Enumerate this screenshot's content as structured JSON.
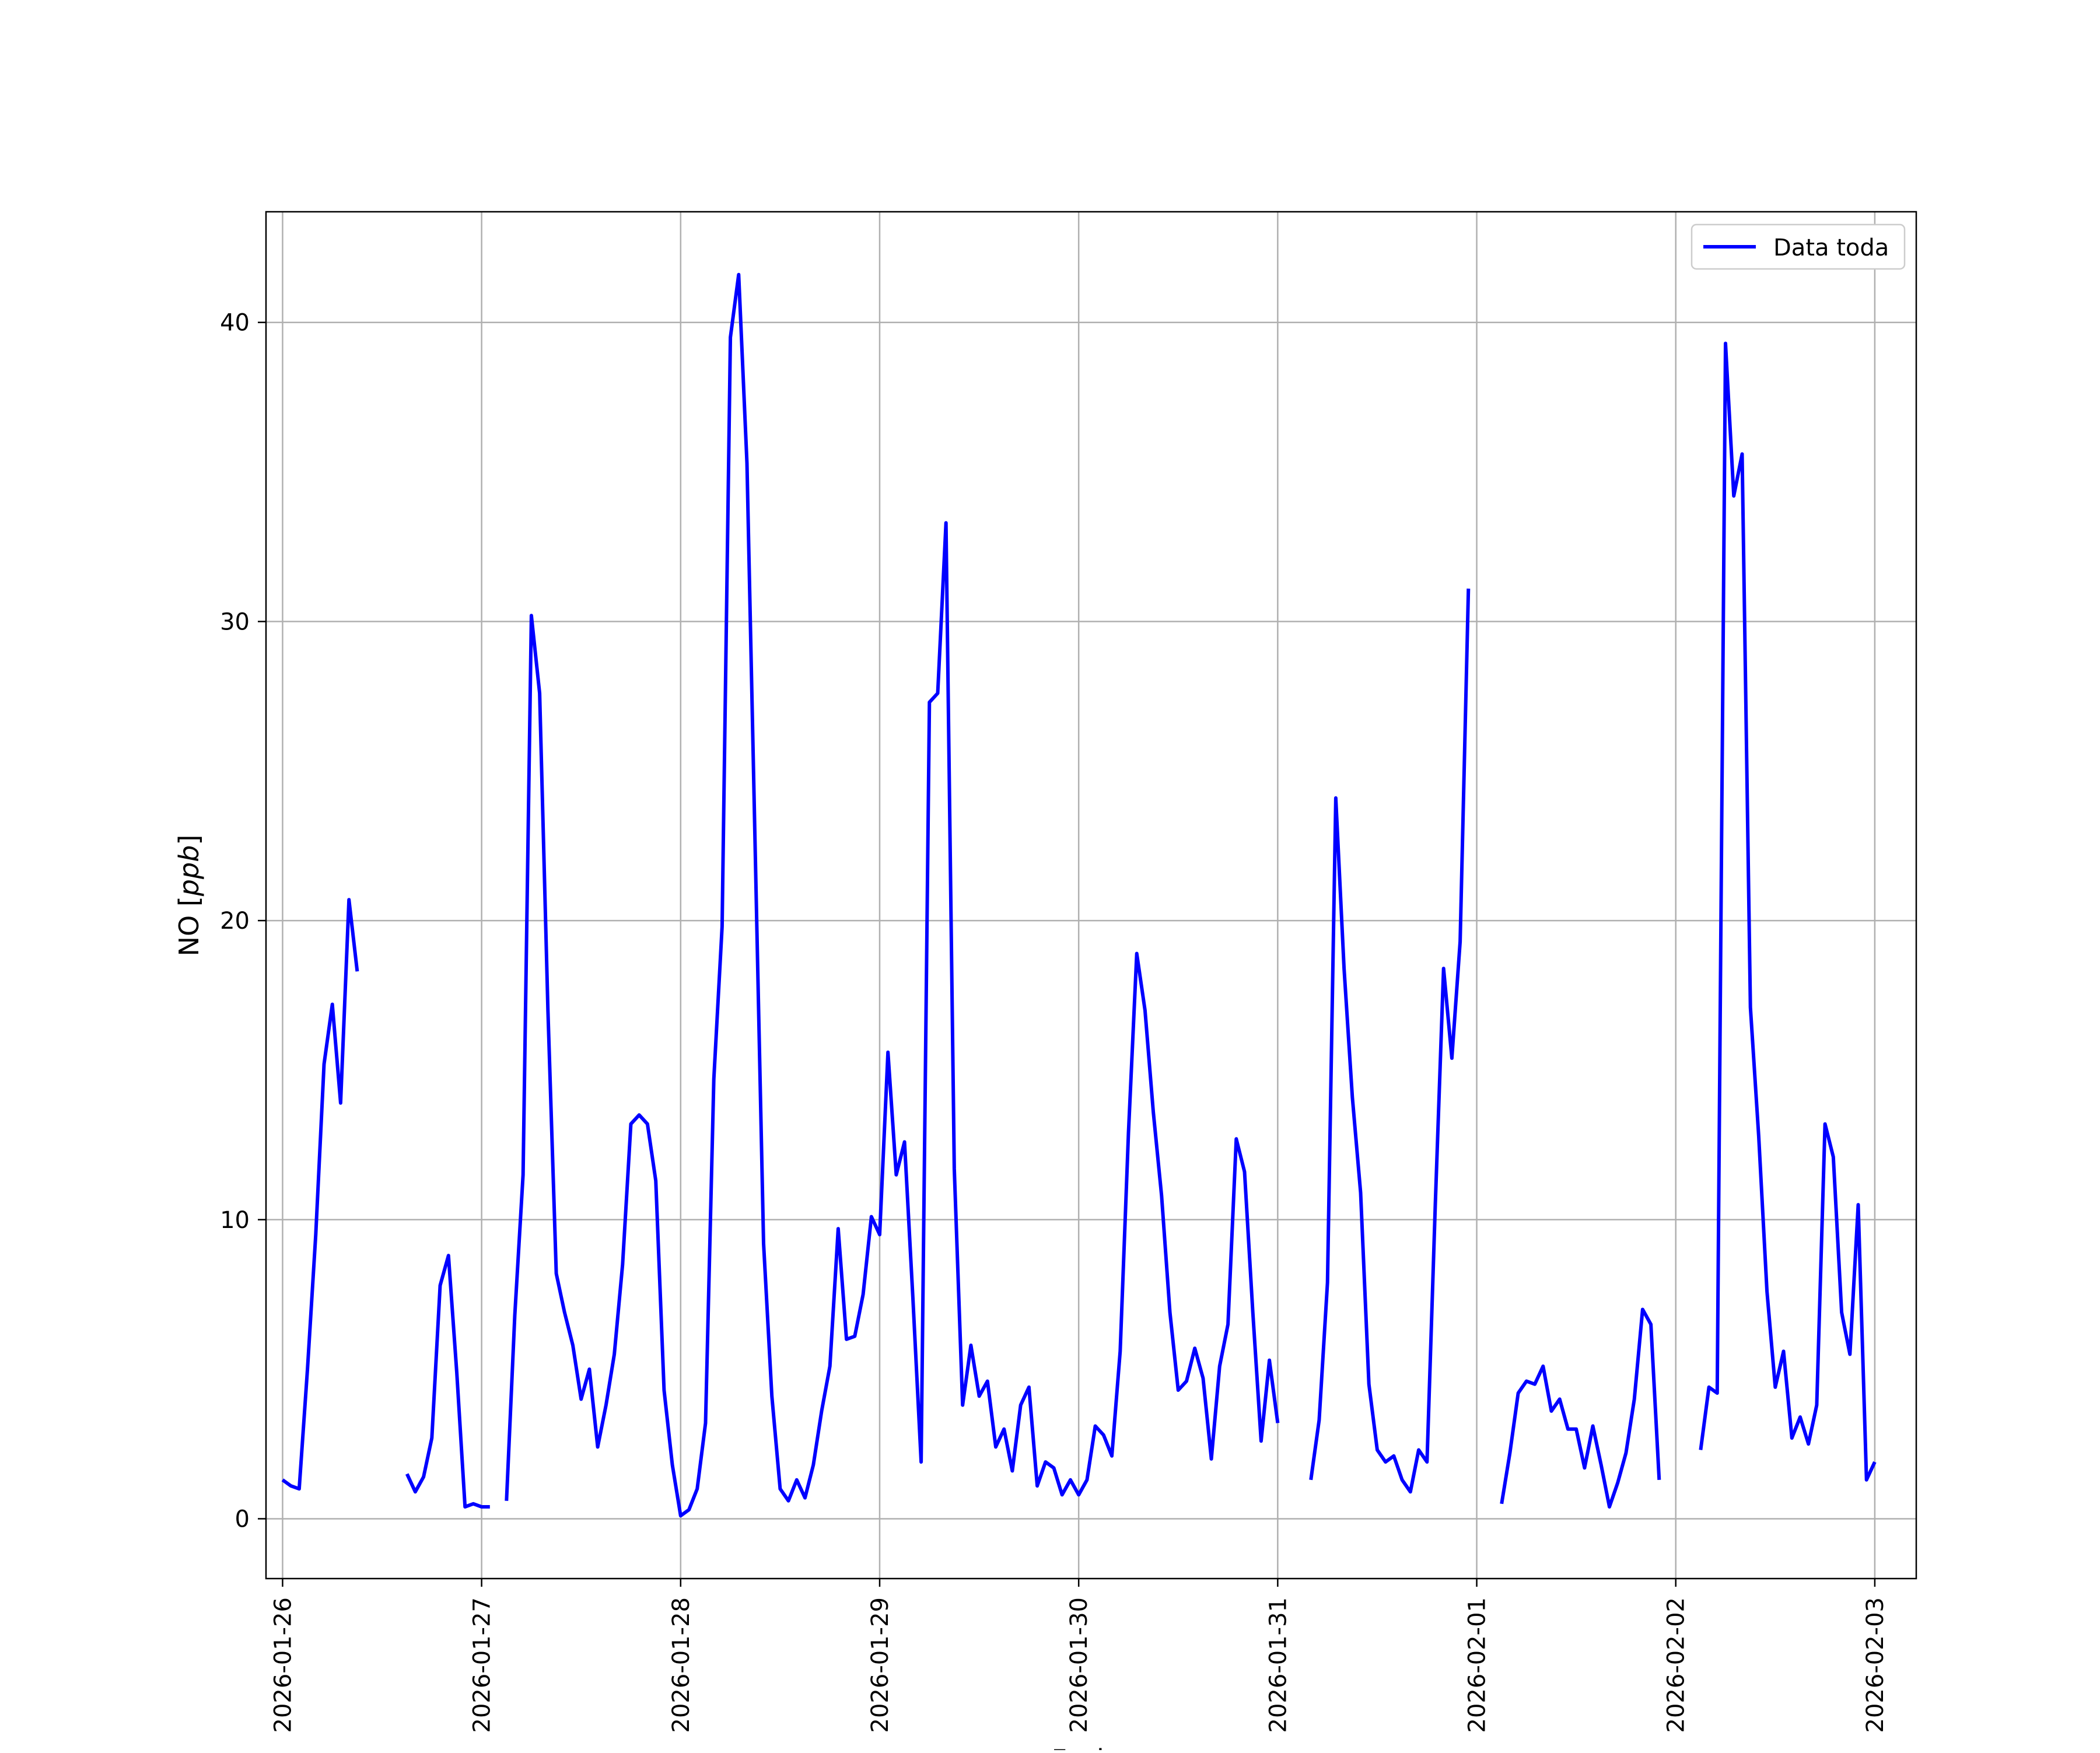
{
  "chart_data": {
    "type": "line",
    "title": "",
    "xlabel": "Fecha",
    "ylabel": "NO [ppb]",
    "ylabel_unit": "ppb",
    "x_start": "2026-01-25T22:00",
    "x_end": "2026-02-03T05:00",
    "xticks": [
      "2026-01-26",
      "2026-01-27",
      "2026-01-28",
      "2026-01-29",
      "2026-01-30",
      "2026-01-31",
      "2026-02-01",
      "2026-02-02",
      "2026-02-03"
    ],
    "yticks": [
      0,
      10,
      20,
      30,
      40
    ],
    "ylim": [
      -2,
      43.7
    ],
    "grid": true,
    "legend_position": "top-right",
    "series": [
      {
        "name": "Data toda",
        "color": "#0000ff",
        "points": [
          [
            "2026-01-26T00:00",
            1.3
          ],
          [
            "2026-01-26T01:00",
            1.1
          ],
          [
            "2026-01-26T02:00",
            1.0
          ],
          [
            "2026-01-26T03:00",
            5.0
          ],
          [
            "2026-01-26T04:00",
            9.5
          ],
          [
            "2026-01-26T05:00",
            15.2
          ],
          [
            "2026-01-26T06:00",
            17.2
          ],
          [
            "2026-01-26T07:00",
            13.9
          ],
          [
            "2026-01-26T08:00",
            20.7
          ],
          [
            "2026-01-26T09:00",
            18.3
          ],
          null,
          [
            "2026-01-26T15:00",
            1.5
          ],
          [
            "2026-01-26T16:00",
            0.9
          ],
          [
            "2026-01-26T17:00",
            1.4
          ],
          [
            "2026-01-26T18:00",
            2.7
          ],
          [
            "2026-01-26T19:00",
            7.8
          ],
          [
            "2026-01-26T20:00",
            8.8
          ],
          [
            "2026-01-26T21:00",
            4.9
          ],
          [
            "2026-01-26T22:00",
            0.4
          ],
          [
            "2026-01-26T23:00",
            0.5
          ],
          [
            "2026-01-27T00:00",
            0.4
          ],
          [
            "2026-01-27T01:00",
            0.4
          ],
          null,
          [
            "2026-01-27T03:00",
            0.6
          ],
          [
            "2026-01-27T04:00",
            6.8
          ],
          [
            "2026-01-27T05:00",
            11.5
          ],
          [
            "2026-01-27T06:00",
            30.2
          ],
          [
            "2026-01-27T07:00",
            27.6
          ],
          [
            "2026-01-27T08:00",
            17.0
          ],
          [
            "2026-01-27T09:00",
            8.2
          ],
          [
            "2026-01-27T10:00",
            6.9
          ],
          [
            "2026-01-27T11:00",
            5.8
          ],
          [
            "2026-01-27T12:00",
            4.0
          ],
          [
            "2026-01-27T13:00",
            5.0
          ],
          [
            "2026-01-27T14:00",
            2.4
          ],
          [
            "2026-01-27T15:00",
            3.8
          ],
          [
            "2026-01-27T16:00",
            5.5
          ],
          [
            "2026-01-27T17:00",
            8.5
          ],
          [
            "2026-01-27T18:00",
            13.2
          ],
          [
            "2026-01-27T19:00",
            13.5
          ],
          [
            "2026-01-27T20:00",
            13.2
          ],
          [
            "2026-01-27T21:00",
            11.3
          ],
          [
            "2026-01-27T22:00",
            4.3
          ],
          [
            "2026-01-27T23:00",
            1.8
          ],
          [
            "2026-01-28T00:00",
            0.1
          ],
          [
            "2026-01-28T01:00",
            0.3
          ],
          [
            "2026-01-28T02:00",
            1.0
          ],
          [
            "2026-01-28T03:00",
            3.2
          ],
          [
            "2026-01-28T04:00",
            14.7
          ],
          [
            "2026-01-28T05:00",
            19.8
          ],
          [
            "2026-01-28T06:00",
            39.5
          ],
          [
            "2026-01-28T07:00",
            41.6
          ],
          [
            "2026-01-28T08:00",
            35.3
          ],
          [
            "2026-01-28T09:00",
            22.3
          ],
          [
            "2026-01-28T10:00",
            9.2
          ],
          [
            "2026-01-28T11:00",
            4.1
          ],
          [
            "2026-01-28T12:00",
            1.0
          ],
          [
            "2026-01-28T13:00",
            0.6
          ],
          [
            "2026-01-28T14:00",
            1.3
          ],
          [
            "2026-01-28T15:00",
            0.7
          ],
          [
            "2026-01-28T16:00",
            1.8
          ],
          [
            "2026-01-28T17:00",
            3.6
          ],
          [
            "2026-01-28T18:00",
            5.1
          ],
          [
            "2026-01-28T19:00",
            9.7
          ],
          [
            "2026-01-28T20:00",
            6.0
          ],
          [
            "2026-01-28T21:00",
            6.1
          ],
          [
            "2026-01-28T22:00",
            7.5
          ],
          [
            "2026-01-28T23:00",
            10.1
          ],
          [
            "2026-01-29T00:00",
            9.5
          ],
          [
            "2026-01-29T01:00",
            15.6
          ],
          [
            "2026-01-29T02:00",
            11.5
          ],
          [
            "2026-01-29T03:00",
            12.6
          ],
          [
            "2026-01-29T04:00",
            7.4
          ],
          [
            "2026-01-29T05:00",
            1.9
          ],
          [
            "2026-01-29T06:00",
            27.3
          ],
          [
            "2026-01-29T07:00",
            27.6
          ],
          [
            "2026-01-29T08:00",
            33.3
          ],
          [
            "2026-01-29T09:00",
            11.7
          ],
          [
            "2026-01-29T10:00",
            3.8
          ],
          [
            "2026-01-29T11:00",
            5.8
          ],
          [
            "2026-01-29T12:00",
            4.1
          ],
          [
            "2026-01-29T13:00",
            4.6
          ],
          [
            "2026-01-29T14:00",
            2.4
          ],
          [
            "2026-01-29T15:00",
            3.0
          ],
          [
            "2026-01-29T16:00",
            1.6
          ],
          [
            "2026-01-29T17:00",
            3.8
          ],
          [
            "2026-01-29T18:00",
            4.4
          ],
          [
            "2026-01-29T19:00",
            1.1
          ],
          [
            "2026-01-29T20:00",
            1.9
          ],
          [
            "2026-01-29T21:00",
            1.7
          ],
          [
            "2026-01-29T22:00",
            0.8
          ],
          [
            "2026-01-29T23:00",
            1.3
          ],
          [
            "2026-01-30T00:00",
            0.8
          ],
          [
            "2026-01-30T01:00",
            1.3
          ],
          [
            "2026-01-30T02:00",
            3.1
          ],
          [
            "2026-01-30T03:00",
            2.8
          ],
          [
            "2026-01-30T04:00",
            2.1
          ],
          [
            "2026-01-30T05:00",
            5.6
          ],
          [
            "2026-01-30T06:00",
            12.9
          ],
          [
            "2026-01-30T07:00",
            18.9
          ],
          [
            "2026-01-30T08:00",
            17.0
          ],
          [
            "2026-01-30T09:00",
            13.6
          ],
          [
            "2026-01-30T10:00",
            10.8
          ],
          [
            "2026-01-30T11:00",
            6.9
          ],
          [
            "2026-01-30T12:00",
            4.3
          ],
          [
            "2026-01-30T13:00",
            4.6
          ],
          [
            "2026-01-30T14:00",
            5.7
          ],
          [
            "2026-01-30T15:00",
            4.7
          ],
          [
            "2026-01-30T16:00",
            2.0
          ],
          [
            "2026-01-30T17:00",
            5.1
          ],
          [
            "2026-01-30T18:00",
            6.5
          ],
          [
            "2026-01-30T19:00",
            12.7
          ],
          [
            "2026-01-30T20:00",
            11.6
          ],
          [
            "2026-01-30T21:00",
            6.9
          ],
          [
            "2026-01-30T22:00",
            2.6
          ],
          [
            "2026-01-30T23:00",
            5.3
          ],
          [
            "2026-01-31T00:00",
            3.2
          ],
          null,
          [
            "2026-01-31T04:00",
            1.3
          ],
          [
            "2026-01-31T05:00",
            3.3
          ],
          [
            "2026-01-31T06:00",
            7.9
          ],
          [
            "2026-01-31T07:00",
            24.1
          ],
          [
            "2026-01-31T08:00",
            18.4
          ],
          [
            "2026-01-31T09:00",
            14.1
          ],
          [
            "2026-01-31T10:00",
            10.9
          ],
          [
            "2026-01-31T11:00",
            4.5
          ],
          [
            "2026-01-31T12:00",
            2.3
          ],
          [
            "2026-01-31T13:00",
            1.9
          ],
          [
            "2026-01-31T14:00",
            2.1
          ],
          [
            "2026-01-31T15:00",
            1.3
          ],
          [
            "2026-01-31T16:00",
            0.9
          ],
          [
            "2026-01-31T17:00",
            2.3
          ],
          [
            "2026-01-31T18:00",
            1.9
          ],
          [
            "2026-01-31T19:00",
            10.5
          ],
          [
            "2026-01-31T20:00",
            18.4
          ],
          [
            "2026-01-31T21:00",
            15.4
          ],
          [
            "2026-01-31T22:00",
            19.3
          ],
          [
            "2026-01-31T23:00",
            31.1
          ],
          null,
          [
            "2026-02-01T03:00",
            0.5
          ],
          [
            "2026-02-01T04:00",
            2.2
          ],
          [
            "2026-02-01T05:00",
            4.2
          ],
          [
            "2026-02-01T06:00",
            4.6
          ],
          [
            "2026-02-01T07:00",
            4.5
          ],
          [
            "2026-02-01T08:00",
            5.1
          ],
          [
            "2026-02-01T09:00",
            3.6
          ],
          [
            "2026-02-01T10:00",
            4.0
          ],
          [
            "2026-02-01T11:00",
            3.0
          ],
          [
            "2026-02-01T12:00",
            3.0
          ],
          [
            "2026-02-01T13:00",
            1.7
          ],
          [
            "2026-02-01T14:00",
            3.1
          ],
          [
            "2026-02-01T15:00",
            1.8
          ],
          [
            "2026-02-01T16:00",
            0.4
          ],
          [
            "2026-02-01T17:00",
            1.2
          ],
          [
            "2026-02-01T18:00",
            2.2
          ],
          [
            "2026-02-01T19:00",
            4.0
          ],
          [
            "2026-02-01T20:00",
            7.0
          ],
          [
            "2026-02-01T21:00",
            6.5
          ],
          [
            "2026-02-01T22:00",
            1.3
          ],
          null,
          [
            "2026-02-02T03:00",
            2.3
          ],
          [
            "2026-02-02T04:00",
            4.4
          ],
          [
            "2026-02-02T05:00",
            4.2
          ],
          [
            "2026-02-02T06:00",
            39.3
          ],
          [
            "2026-02-02T07:00",
            34.2
          ],
          [
            "2026-02-02T08:00",
            35.6
          ],
          [
            "2026-02-02T09:00",
            17.1
          ],
          [
            "2026-02-02T10:00",
            12.8
          ],
          [
            "2026-02-02T11:00",
            7.6
          ],
          [
            "2026-02-02T12:00",
            4.4
          ],
          [
            "2026-02-02T13:00",
            5.6
          ],
          [
            "2026-02-02T14:00",
            2.7
          ],
          [
            "2026-02-02T15:00",
            3.4
          ],
          [
            "2026-02-02T16:00",
            2.5
          ],
          [
            "2026-02-02T17:00",
            3.8
          ],
          [
            "2026-02-02T18:00",
            13.2
          ],
          [
            "2026-02-02T19:00",
            12.1
          ],
          [
            "2026-02-02T20:00",
            6.9
          ],
          [
            "2026-02-02T21:00",
            5.5
          ],
          [
            "2026-02-02T22:00",
            10.5
          ],
          [
            "2026-02-02T23:00",
            1.3
          ],
          [
            "2026-02-03T00:00",
            1.9
          ]
        ]
      }
    ]
  }
}
